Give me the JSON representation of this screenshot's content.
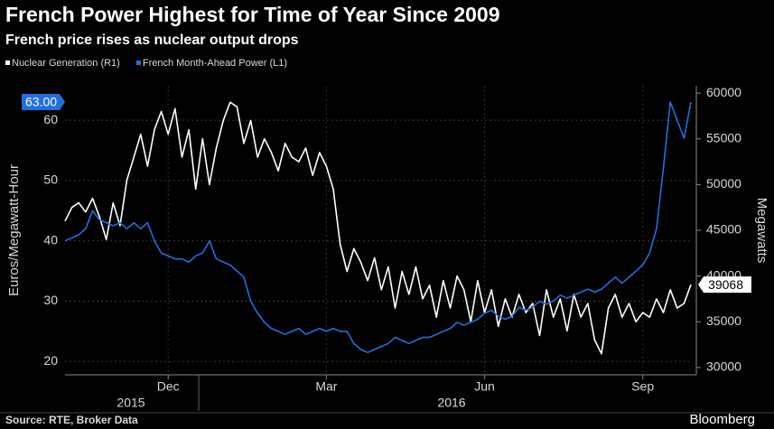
{
  "chart_data": {
    "type": "line",
    "title": "French Power Highest for Time of Year Since 2009",
    "subtitle": "French price rises as nuclear output drops",
    "y_label": "Euros/Megawatt-Hour",
    "y2_label": "Megawatts",
    "source": "Source: RTE, Broker Data",
    "brand": "Bloomberg",
    "year_labels": [
      "2015",
      "2016"
    ],
    "categories": [
      null,
      null,
      null,
      null,
      null,
      null,
      null,
      null,
      null,
      null,
      null,
      null,
      null,
      null,
      null,
      "Dec",
      null,
      null,
      null,
      null,
      null,
      null,
      null,
      null,
      null,
      null,
      null,
      null,
      null,
      null,
      null,
      null,
      null,
      null,
      null,
      null,
      null,
      null,
      "Mar",
      null,
      null,
      null,
      null,
      null,
      null,
      null,
      null,
      null,
      null,
      null,
      null,
      null,
      null,
      null,
      null,
      null,
      null,
      null,
      null,
      null,
      null,
      "Jun",
      null,
      null,
      null,
      null,
      null,
      null,
      null,
      null,
      null,
      null,
      null,
      null,
      null,
      null,
      null,
      null,
      null,
      null,
      null,
      null,
      null,
      null,
      "Sep",
      null,
      null,
      null,
      null,
      null,
      null,
      null
    ],
    "ylim": [
      17.8,
      65.7
    ],
    "yticks": [
      20,
      30,
      40,
      50,
      60
    ],
    "y2lim": [
      29200,
      60800
    ],
    "y2ticks": [
      30000,
      35000,
      40000,
      45000,
      50000,
      55000,
      60000
    ],
    "grid": true,
    "series": [
      {
        "name": "Nuclear Generation (R1)",
        "color": "#ffffff",
        "axis": "y2",
        "values": [
          46000,
          47500,
          48000,
          47000,
          48500,
          46500,
          44000,
          48000,
          45500,
          50500,
          53000,
          55500,
          52000,
          56000,
          58000,
          55500,
          58300,
          53000,
          56000,
          49500,
          55000,
          50000,
          54000,
          57000,
          59000,
          58500,
          54500,
          57000,
          53000,
          55000,
          53500,
          51500,
          54500,
          53000,
          52500,
          54000,
          51000,
          53500,
          52000,
          49500,
          43500,
          40500,
          43000,
          41500,
          39500,
          42000,
          38500,
          41000,
          36500,
          40500,
          38000,
          41000,
          37500,
          39000,
          35500,
          39500,
          36500,
          40000,
          38500,
          35000,
          39500,
          36000,
          38500,
          34500,
          37500,
          35500,
          38000,
          36000,
          37000,
          33500,
          38500,
          35500,
          37500,
          34000,
          38000,
          35500,
          37000,
          33000,
          31500,
          36500,
          38000,
          35500,
          37000,
          35000,
          36000,
          35500,
          37500,
          36000,
          38500,
          36500,
          37000,
          39068
        ]
      },
      {
        "name": "French Month-Ahead Power (L1)",
        "color": "#1f6fe0",
        "values": [
          40,
          40.5,
          41,
          42,
          45,
          43.5,
          43,
          42.5,
          43,
          42,
          43,
          42,
          43,
          40,
          38,
          37.5,
          37,
          37,
          36.5,
          37.5,
          38,
          40,
          37,
          36.5,
          36,
          35,
          34,
          30,
          28,
          26.5,
          25.5,
          25,
          24.5,
          25,
          25.5,
          24.5,
          25,
          25.5,
          25,
          25.5,
          25,
          25,
          23,
          22,
          21.5,
          22,
          22.5,
          23,
          24,
          23.5,
          23,
          23.5,
          24,
          24,
          24.5,
          25,
          25.5,
          26.5,
          26,
          26.5,
          27,
          28,
          28.5,
          27.5,
          27,
          27.5,
          29,
          28.5,
          29,
          30,
          29.5,
          30,
          31,
          30.5,
          31,
          31.5,
          32,
          31.5,
          32,
          33,
          34,
          33,
          34,
          35,
          36,
          38,
          42,
          52,
          63,
          60,
          57,
          63
        ],
        "value_labels": [
          null,
          null,
          null,
          null,
          null,
          null,
          null,
          null,
          null,
          null,
          null,
          null,
          null,
          null,
          null,
          null,
          null,
          null,
          null,
          null,
          null,
          null,
          null,
          null,
          null,
          null,
          null,
          null,
          null,
          null,
          null,
          null,
          null,
          null,
          null,
          null,
          null,
          null,
          null,
          null,
          null,
          null,
          null,
          null,
          null,
          null,
          null,
          null,
          null,
          null,
          null,
          null,
          null,
          null,
          null,
          null,
          null,
          null,
          null,
          null,
          null,
          null,
          null,
          null,
          null,
          null,
          null,
          null,
          null,
          null,
          null,
          null,
          null,
          null,
          null,
          null,
          null,
          null,
          null,
          null,
          null,
          null,
          null,
          null,
          null,
          null,
          null,
          null,
          null,
          null,
          null,
          "63.00"
        ]
      }
    ]
  }
}
